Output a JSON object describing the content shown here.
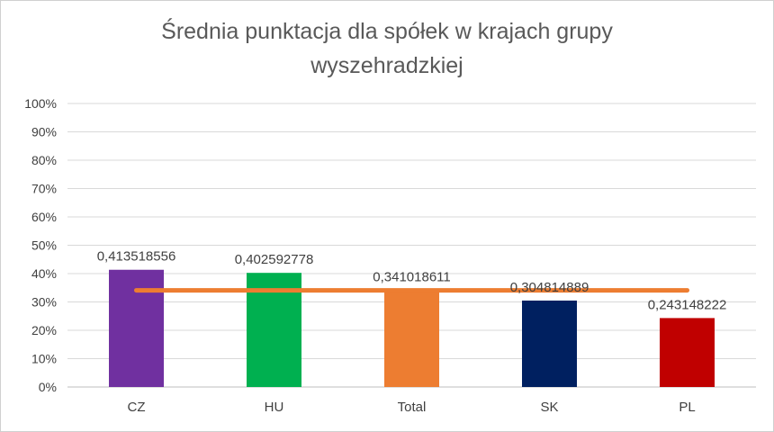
{
  "chart_data": {
    "type": "bar",
    "title": [
      "Średnia punktacja dla spółek w krajach grupy",
      "wyszehradzkiej"
    ],
    "categories": [
      "CZ",
      "HU",
      "Total",
      "SK",
      "PL"
    ],
    "values": [
      0.413518556,
      0.402592778,
      0.341018611,
      0.304814889,
      0.243148222
    ],
    "data_labels": [
      "0,413518556",
      "0,402592778",
      "0,341018611",
      "0,304814889",
      "0,243148222"
    ],
    "bar_colors": [
      "#7030a0",
      "#00b050",
      "#ed7d31",
      "#002060",
      "#c00000"
    ],
    "reference_line": {
      "value": 0.341018611,
      "color": "#ed7d31"
    },
    "ylim": [
      0,
      1
    ],
    "yticks": [
      "0%",
      "10%",
      "20%",
      "30%",
      "40%",
      "50%",
      "60%",
      "70%",
      "80%",
      "90%",
      "100%"
    ],
    "grid": true,
    "legend": "none"
  }
}
